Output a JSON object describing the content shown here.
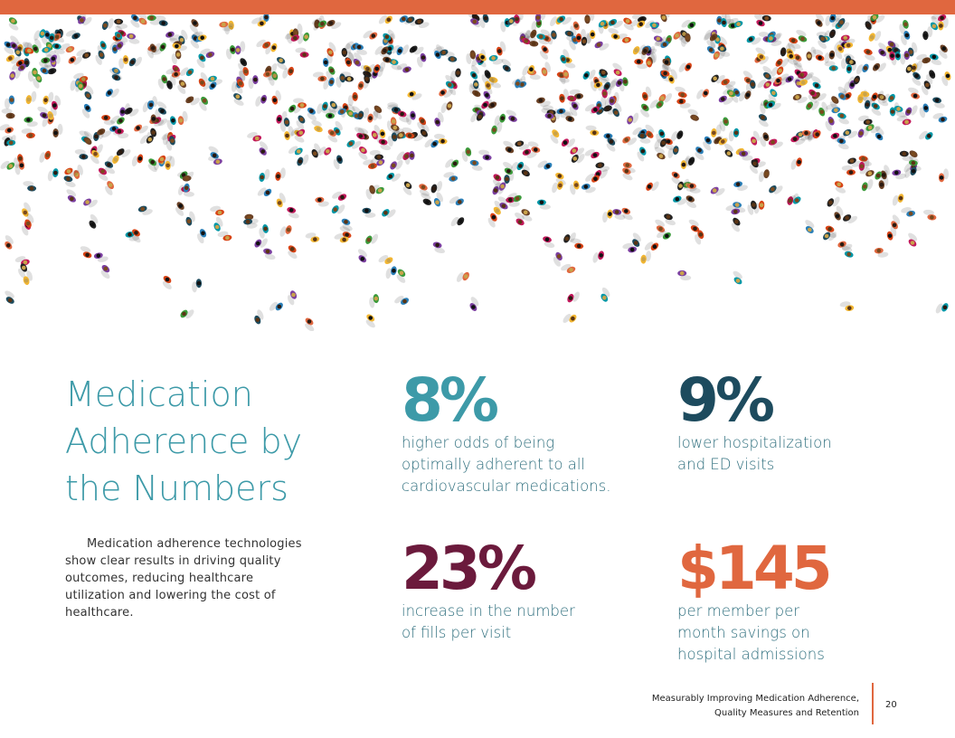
{
  "colors": {
    "accent_orange": "#e0673f",
    "teal": "#3d9aa8",
    "navy": "#1d4b5e",
    "maroon": "#6b1a3c",
    "desc_text": "#2f6f7e"
  },
  "hero": {
    "image": "crowd-aerial-illustration"
  },
  "title": [
    "Medication",
    "Adherence by",
    "the Numbers"
  ],
  "intro": "Medication adherence technologies show clear results in driving quality outcomes, reducing healthcare utilization and lowering the cost of healthcare.",
  "stats": [
    {
      "value": "8%",
      "color": "#3d9aa8",
      "desc": [
        "higher odds of being",
        "optimally adherent to all",
        "cardiovascular medications."
      ]
    },
    {
      "value": "9%",
      "color": "#1d4b5e",
      "desc": [
        "lower hospitalization",
        "and ED visits"
      ]
    },
    {
      "value": "23%",
      "color": "#6b1a3c",
      "desc": [
        "increase in the number",
        "of fills per visit"
      ]
    },
    {
      "value": "$145",
      "color": "#e0673f",
      "desc": [
        "per member per",
        "month savings on",
        "hospital admissions"
      ]
    }
  ],
  "footer": {
    "line1": "Measurably Improving Medication Adherence,",
    "line2": "Quality Measures and Retention",
    "page": "20"
  }
}
